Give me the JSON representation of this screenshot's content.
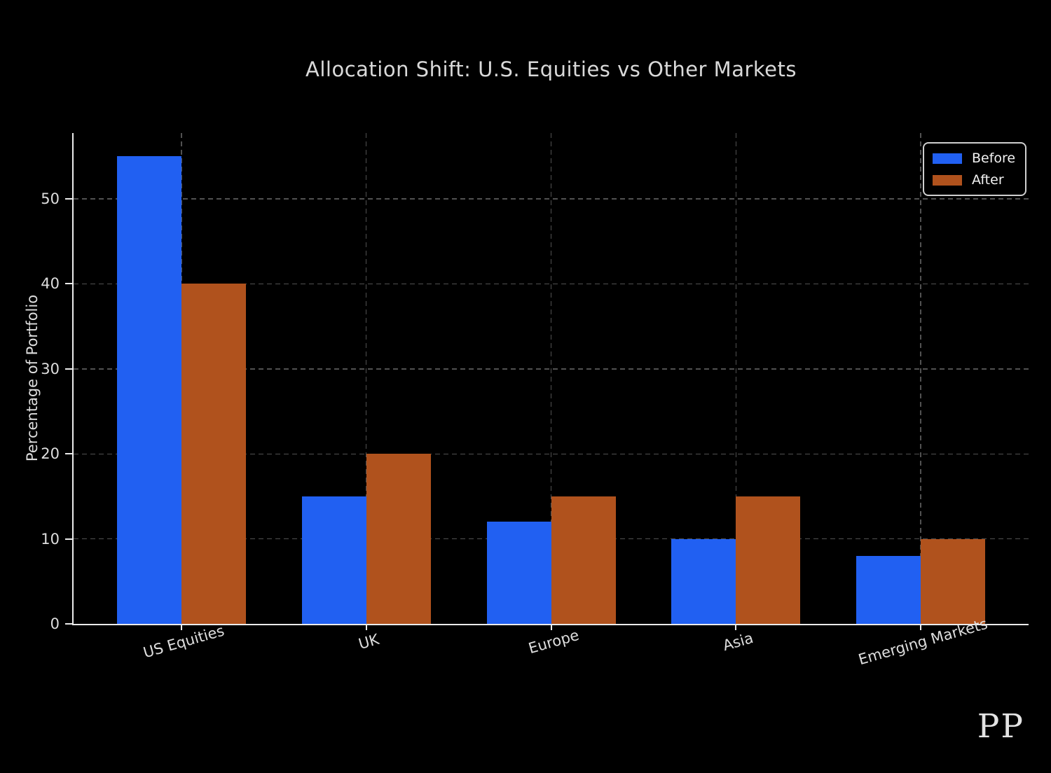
{
  "title": "Allocation Shift: U.S. Equities vs Other Markets",
  "watermark": "PP",
  "chart_data": {
    "type": "bar",
    "categories": [
      "US Equities",
      "UK",
      "Europe",
      "Asia",
      "Emerging Markets"
    ],
    "series": [
      {
        "name": "Before",
        "color": "#2160f2",
        "values": [
          55,
          15,
          12,
          10,
          8
        ]
      },
      {
        "name": "After",
        "color": "#b0521d",
        "values": [
          40,
          20,
          15,
          15,
          10
        ]
      }
    ],
    "title": "Allocation Shift: U.S. Equities vs Other Markets",
    "xlabel": "",
    "ylabel": "Percentage of Portfolio",
    "yticks": [
      0,
      10,
      20,
      30,
      40,
      50
    ],
    "ylim": [
      0,
      57.75
    ],
    "grid": "dashed",
    "legend_position": "upper right",
    "colors": {
      "background": "#000000",
      "grid": "#515151",
      "axis": "#ebebeb",
      "tick_text": "#dedede",
      "title_text": "#d9d9d9"
    }
  }
}
